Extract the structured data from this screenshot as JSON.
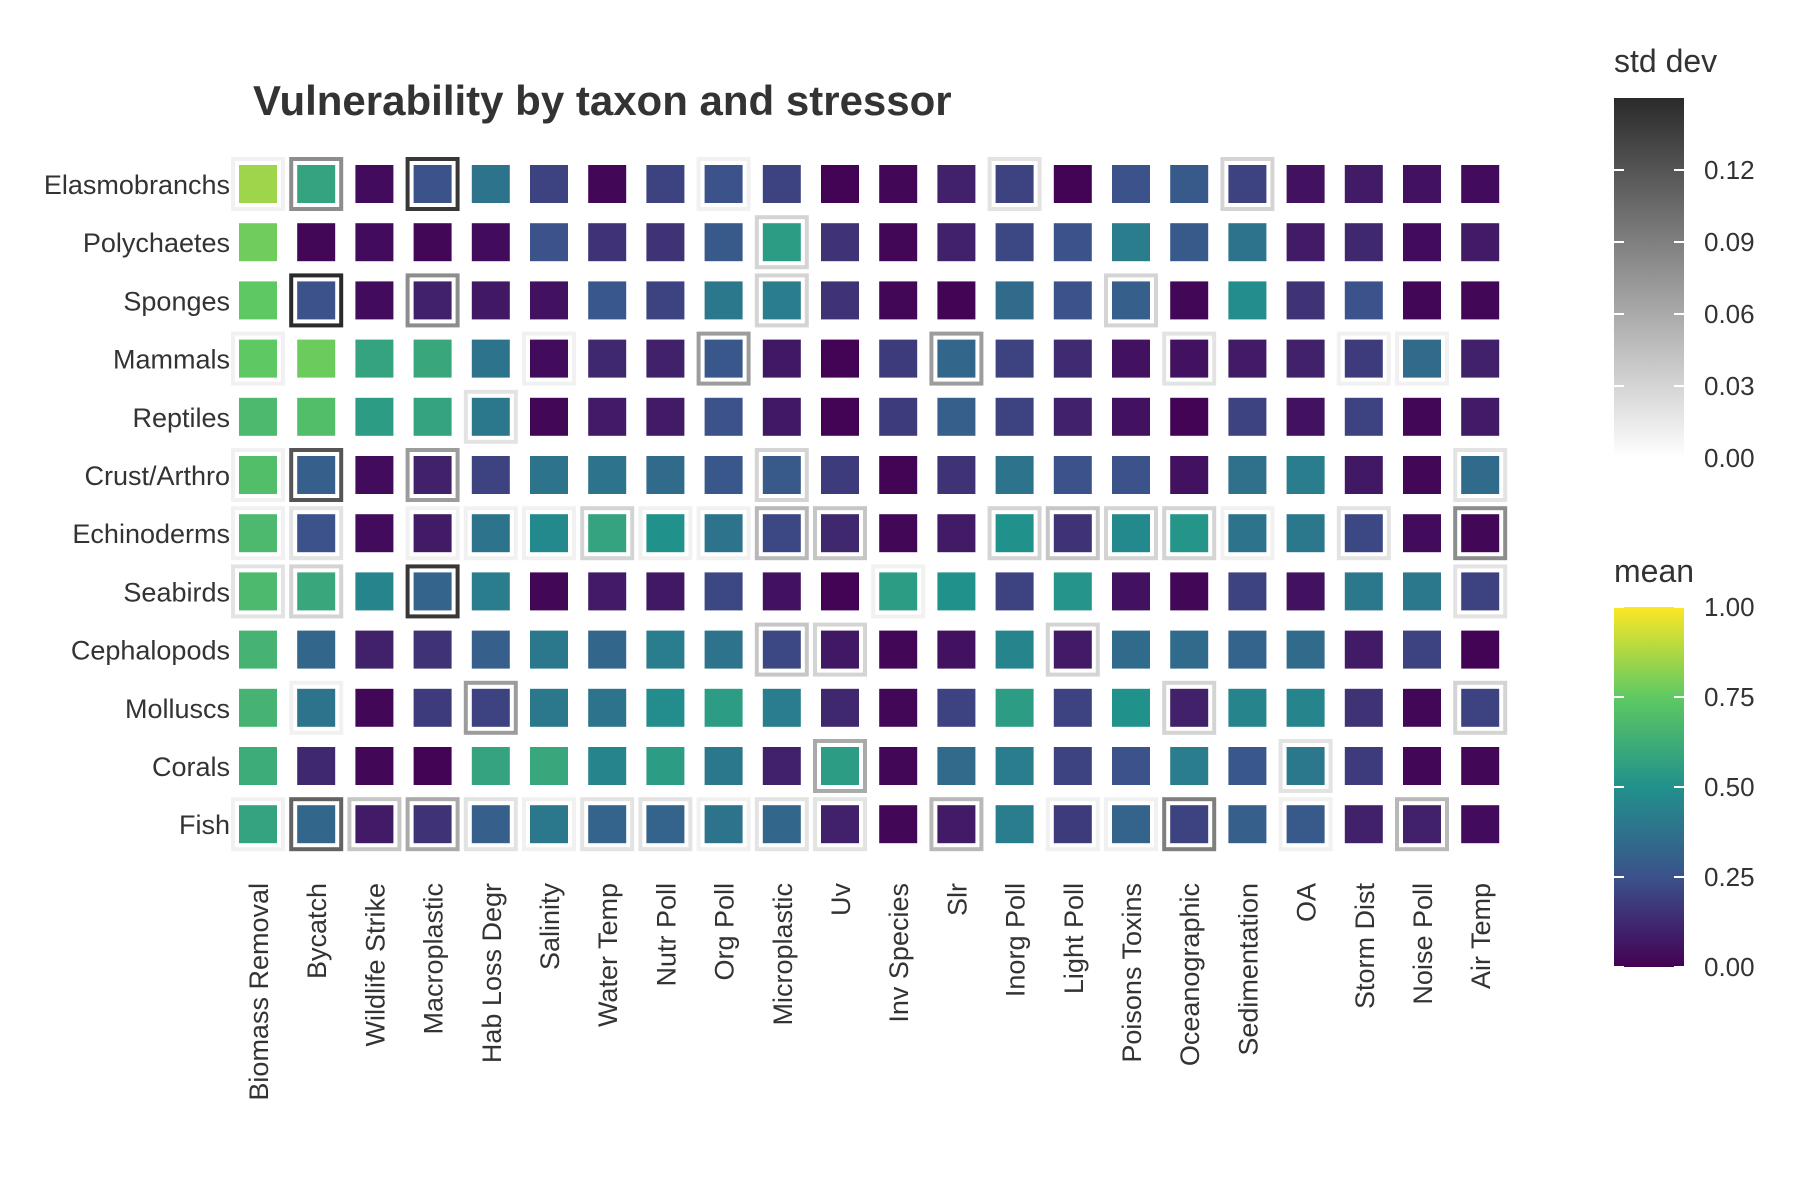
{
  "chart_data": {
    "type": "heatmap",
    "title": "Vulnerability by taxon and stressor",
    "xlabel": "",
    "ylabel": "",
    "x_categories": [
      "Biomass Removal",
      "Bycatch",
      "Wildlife Strike",
      "Macroplastic",
      "Hab Loss Degr",
      "Salinity",
      "Water Temp",
      "Nutr Poll",
      "Org Poll",
      "Microplastic",
      "Uv",
      "Inv Species",
      "Slr",
      "Inorg Poll",
      "Light Poll",
      "Poisons Toxins",
      "Oceanographic",
      "Sedimentation",
      "OA",
      "Storm Dist",
      "Noise Poll",
      "Air Temp"
    ],
    "y_categories": [
      "Elasmobranchs",
      "Polychaetes",
      "Sponges",
      "Mammals",
      "Reptiles",
      "Crust/Arthro",
      "Echinoderms",
      "Seabirds",
      "Cephalopods",
      "Molluscs",
      "Corals",
      "Fish"
    ],
    "mean_values": [
      [
        0.85,
        0.58,
        0.03,
        0.25,
        0.38,
        0.2,
        0.02,
        0.2,
        0.25,
        0.2,
        0.01,
        0.02,
        0.1,
        0.2,
        0.01,
        0.25,
        0.28,
        0.2,
        0.05,
        0.08,
        0.05,
        0.03
      ],
      [
        0.78,
        0.02,
        0.03,
        0.02,
        0.03,
        0.25,
        0.15,
        0.15,
        0.28,
        0.55,
        0.15,
        0.02,
        0.1,
        0.22,
        0.25,
        0.42,
        0.28,
        0.38,
        0.08,
        0.12,
        0.03,
        0.08
      ],
      [
        0.75,
        0.25,
        0.03,
        0.1,
        0.07,
        0.05,
        0.27,
        0.2,
        0.4,
        0.42,
        0.15,
        0.02,
        0.01,
        0.35,
        0.25,
        0.3,
        0.02,
        0.48,
        0.15,
        0.25,
        0.02,
        0.02
      ],
      [
        0.75,
        0.77,
        0.58,
        0.6,
        0.38,
        0.03,
        0.12,
        0.1,
        0.27,
        0.07,
        0.01,
        0.18,
        0.33,
        0.2,
        0.13,
        0.05,
        0.05,
        0.08,
        0.1,
        0.18,
        0.35,
        0.1
      ],
      [
        0.68,
        0.7,
        0.55,
        0.58,
        0.4,
        0.02,
        0.08,
        0.08,
        0.25,
        0.07,
        0.01,
        0.18,
        0.3,
        0.2,
        0.1,
        0.05,
        0.01,
        0.2,
        0.05,
        0.2,
        0.02,
        0.08
      ],
      [
        0.7,
        0.3,
        0.03,
        0.1,
        0.2,
        0.38,
        0.38,
        0.35,
        0.27,
        0.28,
        0.18,
        0.01,
        0.15,
        0.38,
        0.25,
        0.25,
        0.05,
        0.37,
        0.42,
        0.07,
        0.02,
        0.35
      ],
      [
        0.68,
        0.25,
        0.03,
        0.08,
        0.38,
        0.47,
        0.58,
        0.5,
        0.38,
        0.22,
        0.12,
        0.02,
        0.08,
        0.5,
        0.15,
        0.47,
        0.52,
        0.38,
        0.4,
        0.22,
        0.03,
        0.02
      ],
      [
        0.68,
        0.6,
        0.45,
        0.32,
        0.42,
        0.02,
        0.08,
        0.07,
        0.22,
        0.05,
        0.01,
        0.55,
        0.5,
        0.2,
        0.52,
        0.05,
        0.02,
        0.2,
        0.05,
        0.4,
        0.4,
        0.2
      ],
      [
        0.65,
        0.33,
        0.1,
        0.15,
        0.3,
        0.4,
        0.33,
        0.42,
        0.38,
        0.22,
        0.07,
        0.02,
        0.05,
        0.45,
        0.08,
        0.35,
        0.35,
        0.32,
        0.35,
        0.08,
        0.2,
        0.01
      ],
      [
        0.65,
        0.38,
        0.02,
        0.18,
        0.2,
        0.4,
        0.38,
        0.48,
        0.55,
        0.42,
        0.12,
        0.02,
        0.2,
        0.55,
        0.2,
        0.5,
        0.1,
        0.45,
        0.45,
        0.15,
        0.02,
        0.2
      ],
      [
        0.62,
        0.12,
        0.02,
        0.01,
        0.58,
        0.6,
        0.45,
        0.55,
        0.4,
        0.1,
        0.55,
        0.02,
        0.35,
        0.42,
        0.2,
        0.25,
        0.42,
        0.27,
        0.4,
        0.18,
        0.02,
        0.02
      ],
      [
        0.58,
        0.33,
        0.08,
        0.15,
        0.3,
        0.4,
        0.32,
        0.32,
        0.38,
        0.33,
        0.1,
        0.02,
        0.08,
        0.42,
        0.18,
        0.32,
        0.2,
        0.3,
        0.28,
        0.1,
        0.1,
        0.03
      ]
    ],
    "sd_values": [
      [
        0.01,
        0.08,
        0.0,
        0.14,
        0.0,
        0.0,
        0.0,
        0.0,
        0.01,
        0.0,
        0.0,
        0.0,
        0.0,
        0.02,
        0.0,
        0.0,
        0.0,
        0.03,
        0.0,
        0.0,
        0.0,
        0.0
      ],
      [
        0.0,
        0.0,
        0.0,
        0.0,
        0.0,
        0.0,
        0.0,
        0.0,
        0.0,
        0.03,
        0.0,
        0.0,
        0.0,
        0.0,
        0.0,
        0.0,
        0.0,
        0.0,
        0.0,
        0.0,
        0.0,
        0.0
      ],
      [
        0.0,
        0.15,
        0.0,
        0.08,
        0.0,
        0.0,
        0.0,
        0.0,
        0.0,
        0.03,
        0.0,
        0.0,
        0.0,
        0.0,
        0.0,
        0.03,
        0.0,
        0.0,
        0.0,
        0.0,
        0.0,
        0.0
      ],
      [
        0.01,
        0.0,
        0.0,
        0.0,
        0.0,
        0.01,
        0.0,
        0.0,
        0.07,
        0.0,
        0.0,
        0.0,
        0.07,
        0.0,
        0.0,
        0.0,
        0.02,
        0.0,
        0.0,
        0.01,
        0.01,
        0.0
      ],
      [
        0.0,
        0.0,
        0.0,
        0.0,
        0.02,
        0.0,
        0.0,
        0.0,
        0.0,
        0.0,
        0.0,
        0.0,
        0.0,
        0.0,
        0.0,
        0.0,
        0.0,
        0.0,
        0.0,
        0.0,
        0.0,
        0.0
      ],
      [
        0.01,
        0.12,
        0.0,
        0.07,
        0.0,
        0.0,
        0.0,
        0.0,
        0.0,
        0.03,
        0.0,
        0.0,
        0.0,
        0.0,
        0.0,
        0.0,
        0.0,
        0.0,
        0.0,
        0.0,
        0.0,
        0.02
      ],
      [
        0.01,
        0.02,
        0.0,
        0.01,
        0.01,
        0.01,
        0.03,
        0.01,
        0.01,
        0.05,
        0.04,
        0.0,
        0.0,
        0.03,
        0.04,
        0.03,
        0.03,
        0.01,
        0.0,
        0.02,
        0.0,
        0.08
      ],
      [
        0.02,
        0.03,
        0.0,
        0.14,
        0.0,
        0.0,
        0.0,
        0.0,
        0.0,
        0.0,
        0.0,
        0.01,
        0.0,
        0.0,
        0.0,
        0.0,
        0.0,
        0.0,
        0.0,
        0.0,
        0.0,
        0.02
      ],
      [
        0.0,
        0.0,
        0.0,
        0.0,
        0.0,
        0.0,
        0.0,
        0.0,
        0.0,
        0.04,
        0.03,
        0.0,
        0.0,
        0.0,
        0.03,
        0.0,
        0.0,
        0.0,
        0.0,
        0.0,
        0.0,
        0.0
      ],
      [
        0.0,
        0.01,
        0.0,
        0.0,
        0.07,
        0.0,
        0.0,
        0.0,
        0.0,
        0.0,
        0.0,
        0.0,
        0.0,
        0.0,
        0.0,
        0.0,
        0.03,
        0.0,
        0.0,
        0.0,
        0.0,
        0.03
      ],
      [
        0.0,
        0.0,
        0.0,
        0.0,
        0.0,
        0.0,
        0.0,
        0.0,
        0.0,
        0.0,
        0.06,
        0.0,
        0.0,
        0.0,
        0.0,
        0.0,
        0.0,
        0.0,
        0.02,
        0.0,
        0.0,
        0.0
      ],
      [
        0.01,
        0.11,
        0.04,
        0.06,
        0.02,
        0.01,
        0.02,
        0.02,
        0.01,
        0.02,
        0.02,
        0.0,
        0.05,
        0.0,
        0.01,
        0.01,
        0.09,
        0.0,
        0.01,
        0.0,
        0.05,
        0.0
      ]
    ],
    "legend_mean": {
      "title": "mean",
      "range": [
        0,
        1
      ],
      "ticks": [
        0,
        0.25,
        0.5,
        0.75,
        1.0
      ],
      "tick_labels": [
        "0.00",
        "0.25",
        "0.50",
        "0.75",
        "1.00"
      ],
      "colors": [
        "#440154",
        "#3b528b",
        "#21918c",
        "#5ec962",
        "#fde725"
      ]
    },
    "legend_sd": {
      "title": "std dev",
      "range": [
        0,
        0.15
      ],
      "ticks": [
        0,
        0.03,
        0.06,
        0.09,
        0.12
      ],
      "tick_labels": [
        "0.00",
        "0.03",
        "0.06",
        "0.09",
        "0.12"
      ],
      "colors": [
        "#ffffff",
        "#2a2a2a"
      ]
    },
    "legend_placement": "right",
    "grid": false
  }
}
